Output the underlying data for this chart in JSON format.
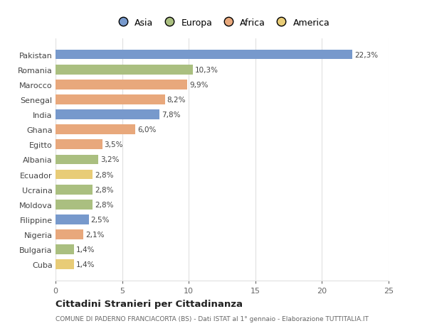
{
  "countries": [
    "Pakistan",
    "Romania",
    "Marocco",
    "Senegal",
    "India",
    "Ghana",
    "Egitto",
    "Albania",
    "Ecuador",
    "Ucraina",
    "Moldova",
    "Filippine",
    "Nigeria",
    "Bulgaria",
    "Cuba"
  ],
  "values": [
    22.3,
    10.3,
    9.9,
    8.2,
    7.8,
    6.0,
    3.5,
    3.2,
    2.8,
    2.8,
    2.8,
    2.5,
    2.1,
    1.4,
    1.4
  ],
  "labels": [
    "22,3%",
    "10,3%",
    "9,9%",
    "8,2%",
    "7,8%",
    "6,0%",
    "3,5%",
    "3,2%",
    "2,8%",
    "2,8%",
    "2,8%",
    "2,5%",
    "2,1%",
    "1,4%",
    "1,4%"
  ],
  "colors": [
    "#7799cc",
    "#aabf80",
    "#e8a87c",
    "#e8a87c",
    "#7799cc",
    "#e8a87c",
    "#e8a87c",
    "#aabf80",
    "#e8cc77",
    "#aabf80",
    "#aabf80",
    "#7799cc",
    "#e8a87c",
    "#aabf80",
    "#e8cc77"
  ],
  "legend_labels": [
    "Asia",
    "Europa",
    "Africa",
    "America"
  ],
  "legend_colors": [
    "#7799cc",
    "#aabf80",
    "#e8a87c",
    "#e8cc77"
  ],
  "title": "Cittadini Stranieri per Cittadinanza",
  "subtitle": "COMUNE DI PADERNO FRANCIACORTA (BS) - Dati ISTAT al 1° gennaio - Elaborazione TUTTITALIA.IT",
  "xlim": [
    0,
    25
  ],
  "xticks": [
    0,
    5,
    10,
    15,
    20,
    25
  ],
  "background_color": "#ffffff",
  "grid_color": "#e0e0e0",
  "bar_height": 0.65
}
